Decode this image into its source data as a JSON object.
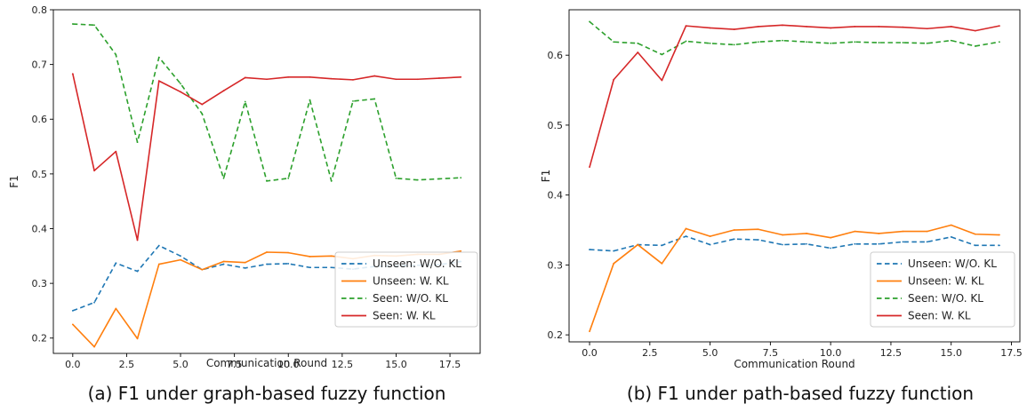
{
  "chart_data": [
    {
      "type": "line",
      "xlabel": "Communication Round",
      "ylabel": "F1",
      "xlim": [
        -0.9,
        18.9
      ],
      "ylim": [
        0.172,
        0.8
      ],
      "xticks": [
        0.0,
        2.5,
        5.0,
        7.5,
        10.0,
        12.5,
        15.0,
        17.5
      ],
      "xtick_labels": [
        "0.0",
        "2.5",
        "5.0",
        "7.5",
        "10.0",
        "12.5",
        "15.0",
        "17.5"
      ],
      "yticks": [
        0.2,
        0.3,
        0.4,
        0.5,
        0.6,
        0.7,
        0.8
      ],
      "ytick_labels": [
        "0.2",
        "0.3",
        "0.4",
        "0.5",
        "0.6",
        "0.7",
        "0.8"
      ],
      "legend_position": "lower-right",
      "grid": false,
      "caption": "(a) F1 under graph-based fuzzy function",
      "series": [
        {
          "name": "Unseen: W/O. KL",
          "color": "#1f77b4",
          "dash": true,
          "x": [
            0,
            1,
            2,
            3,
            4,
            5,
            6,
            7,
            8,
            9,
            10,
            11,
            12,
            13,
            14,
            15,
            16,
            17,
            18
          ],
          "y": [
            0.25,
            0.265,
            0.337,
            0.322,
            0.369,
            0.35,
            0.325,
            0.335,
            0.328,
            0.335,
            0.336,
            0.329,
            0.329,
            0.326,
            0.331,
            0.332,
            0.333,
            0.334,
            0.34
          ]
        },
        {
          "name": "Unseen: W. KL",
          "color": "#ff7f0e",
          "dash": false,
          "x": [
            0,
            1,
            2,
            3,
            4,
            5,
            6,
            7,
            8,
            9,
            10,
            11,
            12,
            13,
            14,
            15,
            16,
            17,
            18
          ],
          "y": [
            0.225,
            0.184,
            0.254,
            0.199,
            0.335,
            0.343,
            0.325,
            0.34,
            0.338,
            0.357,
            0.356,
            0.349,
            0.35,
            0.345,
            0.351,
            0.35,
            0.353,
            0.353,
            0.359
          ]
        },
        {
          "name": "Seen: W/O. KL",
          "color": "#2ca02c",
          "dash": true,
          "x": [
            0,
            1,
            2,
            3,
            4,
            5,
            6,
            7,
            8,
            9,
            10,
            11,
            12,
            13,
            14,
            15,
            16,
            17,
            18
          ],
          "y": [
            0.774,
            0.772,
            0.718,
            0.558,
            0.713,
            0.665,
            0.61,
            0.492,
            0.632,
            0.487,
            0.492,
            0.635,
            0.487,
            0.633,
            0.637,
            0.492,
            0.489,
            0.491,
            0.493
          ]
        },
        {
          "name": "Seen: W. KL",
          "color": "#d62728",
          "dash": false,
          "x": [
            0,
            1,
            2,
            3,
            4,
            5,
            6,
            7,
            8,
            9,
            10,
            11,
            12,
            13,
            14,
            15,
            16,
            17,
            18
          ],
          "y": [
            0.683,
            0.506,
            0.541,
            0.379,
            0.67,
            0.65,
            0.627,
            0.652,
            0.676,
            0.673,
            0.677,
            0.677,
            0.674,
            0.672,
            0.679,
            0.673,
            0.673,
            0.675,
            0.677
          ]
        }
      ]
    },
    {
      "type": "line",
      "xlabel": "Communication Round",
      "ylabel": "F1",
      "xlim": [
        -0.85,
        17.85
      ],
      "ylim": [
        0.19,
        0.665
      ],
      "xticks": [
        0.0,
        2.5,
        5.0,
        7.5,
        10.0,
        12.5,
        15.0,
        17.5
      ],
      "xtick_labels": [
        "0.0",
        "2.5",
        "5.0",
        "7.5",
        "10.0",
        "12.5",
        "15.0",
        "17.5"
      ],
      "yticks": [
        0.2,
        0.3,
        0.4,
        0.5,
        0.6
      ],
      "ytick_labels": [
        "0.2",
        "0.3",
        "0.4",
        "0.5",
        "0.6"
      ],
      "legend_position": "lower-right",
      "grid": false,
      "caption": "(b) F1 under path-based fuzzy function",
      "series": [
        {
          "name": "Unseen: W/O. KL",
          "color": "#1f77b4",
          "dash": true,
          "x": [
            0,
            1,
            2,
            3,
            4,
            5,
            6,
            7,
            8,
            9,
            10,
            11,
            12,
            13,
            14,
            15,
            16,
            17
          ],
          "y": [
            0.322,
            0.32,
            0.329,
            0.328,
            0.341,
            0.329,
            0.337,
            0.336,
            0.329,
            0.33,
            0.324,
            0.33,
            0.33,
            0.333,
            0.333,
            0.34,
            0.328,
            0.328
          ]
        },
        {
          "name": "Unseen: W. KL",
          "color": "#ff7f0e",
          "dash": false,
          "x": [
            0,
            1,
            2,
            3,
            4,
            5,
            6,
            7,
            8,
            9,
            10,
            11,
            12,
            13,
            14,
            15,
            16,
            17
          ],
          "y": [
            0.205,
            0.302,
            0.329,
            0.302,
            0.352,
            0.341,
            0.35,
            0.351,
            0.343,
            0.345,
            0.339,
            0.348,
            0.345,
            0.348,
            0.348,
            0.357,
            0.344,
            0.343
          ]
        },
        {
          "name": "Seen: W/O. KL",
          "color": "#2ca02c",
          "dash": true,
          "x": [
            0,
            1,
            2,
            3,
            4,
            5,
            6,
            7,
            8,
            9,
            10,
            11,
            12,
            13,
            14,
            15,
            16,
            17
          ],
          "y": [
            0.648,
            0.619,
            0.617,
            0.601,
            0.62,
            0.617,
            0.615,
            0.619,
            0.621,
            0.619,
            0.617,
            0.619,
            0.618,
            0.618,
            0.617,
            0.621,
            0.613,
            0.619
          ]
        },
        {
          "name": "Seen: W. KL",
          "color": "#d62728",
          "dash": false,
          "x": [
            0,
            1,
            2,
            3,
            4,
            5,
            6,
            7,
            8,
            9,
            10,
            11,
            12,
            13,
            14,
            15,
            16,
            17
          ],
          "y": [
            0.44,
            0.565,
            0.604,
            0.564,
            0.642,
            0.639,
            0.637,
            0.641,
            0.643,
            0.641,
            0.639,
            0.641,
            0.641,
            0.64,
            0.638,
            0.641,
            0.635,
            0.642
          ]
        }
      ]
    }
  ]
}
